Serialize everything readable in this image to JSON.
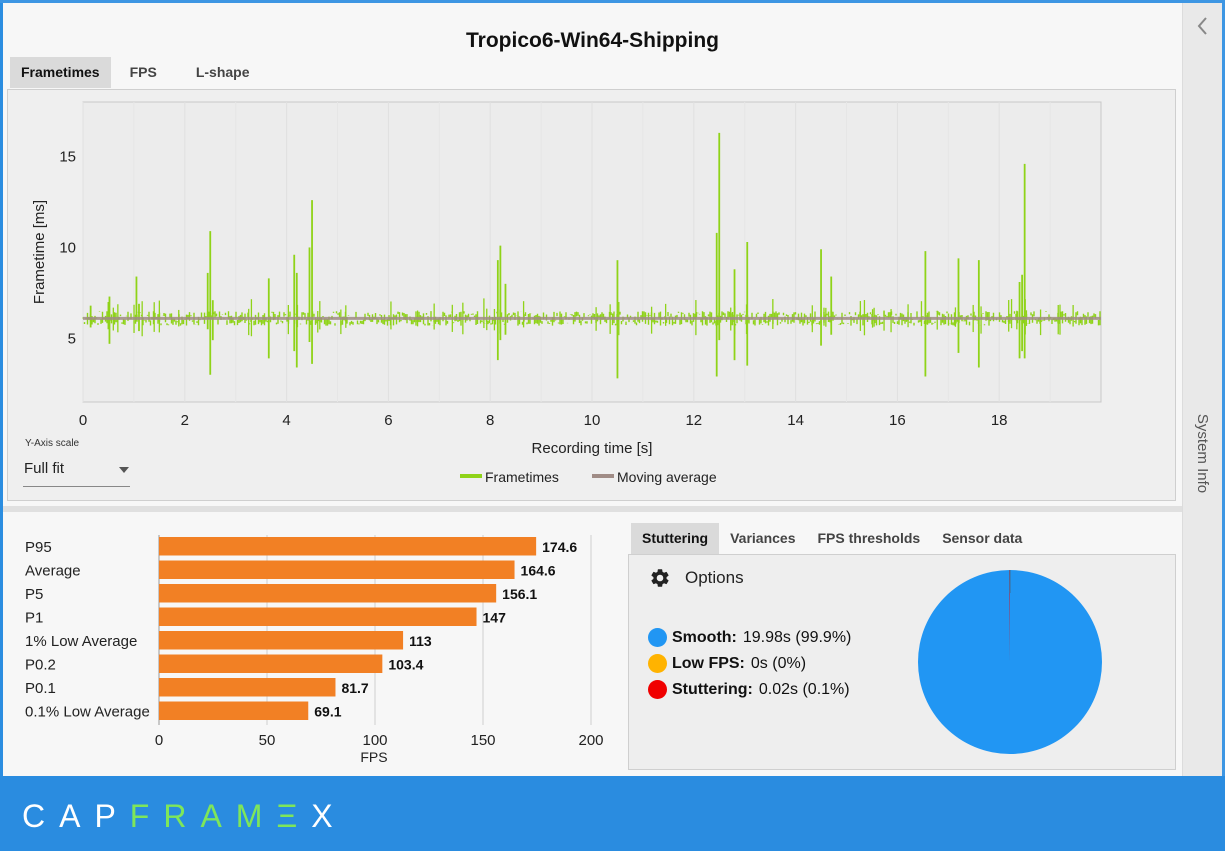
{
  "title": "Tropico6-Win64-Shipping",
  "top_tabs": [
    "Frametimes",
    "FPS",
    "L-shape"
  ],
  "side_panel": {
    "label": "System Info"
  },
  "y_axis_scale": {
    "label": "Y-Axis scale",
    "value": "Full fit"
  },
  "legend": {
    "frametimes": "Frametimes",
    "moving_average": "Moving average"
  },
  "colors": {
    "frametimes": "#8fd318",
    "moving_average": "#a08c86",
    "bar": "#f28024",
    "smooth": "#2196f3",
    "low_fps": "#ffb300",
    "stuttering": "#f00000"
  },
  "frametime_chart": {
    "type": "line",
    "xlabel": "Recording time [s]",
    "ylabel": "Frametime [ms]",
    "xlim": [
      0,
      20
    ],
    "ylim": [
      1.5,
      18
    ],
    "xticks": [
      0,
      2,
      4,
      6,
      8,
      10,
      12,
      14,
      16,
      18
    ],
    "yticks": [
      5,
      10,
      15
    ],
    "baseline_ms": 6.1,
    "moving_average_ms": 6.1,
    "spikes": [
      {
        "t": 0.15,
        "hi": 6.8,
        "lo": 5.6
      },
      {
        "t": 0.5,
        "hi": 7.0,
        "lo": 5.5
      },
      {
        "t": 0.52,
        "hi": 7.3,
        "lo": 4.7
      },
      {
        "t": 1.05,
        "hi": 8.4,
        "lo": 6.0
      },
      {
        "t": 1.1,
        "hi": 6.9,
        "lo": 5.4
      },
      {
        "t": 2.45,
        "hi": 8.6,
        "lo": 5.5
      },
      {
        "t": 2.5,
        "hi": 10.9,
        "lo": 3.0
      },
      {
        "t": 2.55,
        "hi": 7.1,
        "lo": 4.9
      },
      {
        "t": 3.65,
        "hi": 8.3,
        "lo": 3.9
      },
      {
        "t": 4.15,
        "hi": 9.6,
        "lo": 4.3
      },
      {
        "t": 4.2,
        "hi": 8.6,
        "lo": 3.4
      },
      {
        "t": 4.5,
        "hi": 12.6,
        "lo": 3.6
      },
      {
        "t": 4.45,
        "hi": 10.0,
        "lo": 4.8
      },
      {
        "t": 8.15,
        "hi": 9.3,
        "lo": 3.8
      },
      {
        "t": 8.2,
        "hi": 10.1,
        "lo": 4.9
      },
      {
        "t": 8.3,
        "hi": 8.0,
        "lo": 5.2
      },
      {
        "t": 10.5,
        "hi": 9.3,
        "lo": 2.8
      },
      {
        "t": 12.45,
        "hi": 10.8,
        "lo": 2.9
      },
      {
        "t": 12.5,
        "hi": 16.3,
        "lo": 4.9
      },
      {
        "t": 12.8,
        "hi": 8.8,
        "lo": 3.8
      },
      {
        "t": 13.05,
        "hi": 10.3,
        "lo": 3.5
      },
      {
        "t": 14.5,
        "hi": 9.9,
        "lo": 4.6
      },
      {
        "t": 14.7,
        "hi": 8.4,
        "lo": 5.2
      },
      {
        "t": 16.55,
        "hi": 9.8,
        "lo": 2.9
      },
      {
        "t": 17.2,
        "hi": 9.4,
        "lo": 4.2
      },
      {
        "t": 17.6,
        "hi": 9.3,
        "lo": 3.4
      },
      {
        "t": 18.4,
        "hi": 8.1,
        "lo": 3.9
      },
      {
        "t": 18.45,
        "hi": 8.5,
        "lo": 4.3
      },
      {
        "t": 18.5,
        "hi": 14.6,
        "lo": 3.9
      }
    ]
  },
  "bar_chart": {
    "type": "bar",
    "orientation": "horizontal",
    "categories": [
      "P95",
      "Average",
      "P5",
      "P1",
      "1% Low Average",
      "P0.2",
      "P0.1",
      "0.1% Low Average"
    ],
    "values": [
      174.6,
      164.6,
      156.1,
      147,
      113,
      103.4,
      81.7,
      69.1
    ],
    "labels": [
      "174.6",
      "164.6",
      "156.1",
      "147",
      "113",
      "103.4",
      "81.7",
      "69.1"
    ],
    "xlim": [
      0,
      200
    ],
    "xticks": [
      "0",
      "50",
      "100",
      "150",
      "200"
    ],
    "xlabel": "FPS"
  },
  "stats_tabs": [
    "Stuttering",
    "Variances",
    "FPS thresholds",
    "Sensor data"
  ],
  "stuttering": {
    "options_label": "Options",
    "items": [
      {
        "name": "Smooth:",
        "value": "19.98s (99.9%)",
        "percent": 99.9
      },
      {
        "name": "Low FPS:",
        "value": "0s (0%)",
        "percent": 0
      },
      {
        "name": "Stuttering:",
        "value": "0.02s (0.1%)",
        "percent": 0.1
      }
    ]
  },
  "logo": {
    "part1": "CAP",
    "part2": "FRAM",
    "part3": "Ξ",
    "part4": "X"
  }
}
